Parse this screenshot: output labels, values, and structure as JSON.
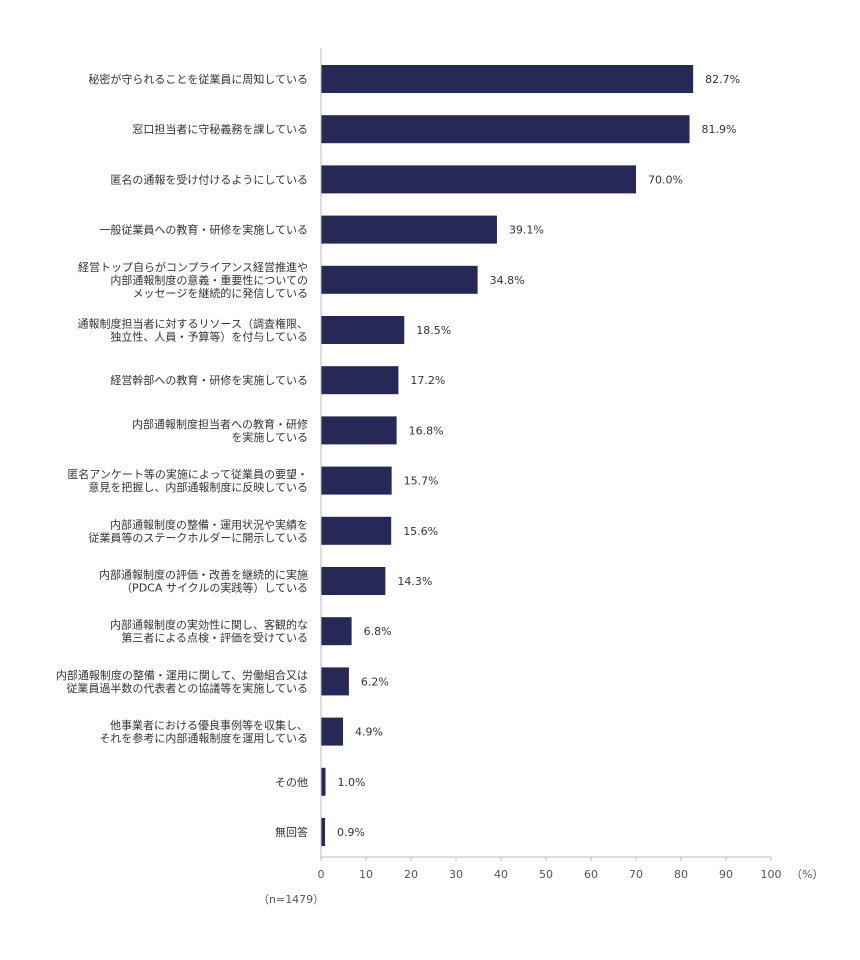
{
  "chart_data": {
    "type": "bar",
    "orientation": "horizontal",
    "categories": [
      [
        "秘密が守られることを従業員に周知している"
      ],
      [
        "窓口担当者に守秘義務を課している"
      ],
      [
        "匿名の通報を受け付けるようにしている"
      ],
      [
        "一般従業員への教育・研修を実施している"
      ],
      [
        "経営トップ自らがコンプライアンス経営推進や",
        "内部通報制度の意義・重要性についての",
        "メッセージを継続的に発信している"
      ],
      [
        "通報制度担当者に対するリソース（調査権限、",
        "独立性、人員・予算等）を付与している"
      ],
      [
        "経営幹部への教育・研修を実施している"
      ],
      [
        "内部通報制度担当者への教育・研修",
        "を実施している"
      ],
      [
        "匿名アンケート等の実施によって従業員の要望・",
        "意見を把握し、内部通報制度に反映している"
      ],
      [
        "内部通報制度の整備・運用状況や実績を",
        "従業員等のステークホルダーに開示している"
      ],
      [
        "内部通報制度の評価・改善を継続的に実施",
        "（PDCA サイクルの実践等）している"
      ],
      [
        "内部通報制度の実効性に関し、客観的な",
        "第三者による点検・評価を受けている"
      ],
      [
        "内部通報制度の整備・運用に関して、労働組合又は",
        "従業員過半数の代表者との協議等を実施している"
      ],
      [
        "他事業者における優良事例等を収集し、",
        "それを参考に内部通報制度を運用している"
      ],
      [
        "その他"
      ],
      [
        "無回答"
      ]
    ],
    "values": [
      82.7,
      81.9,
      70.0,
      39.1,
      34.8,
      18.5,
      17.2,
      16.8,
      15.7,
      15.6,
      14.3,
      6.8,
      6.2,
      4.9,
      1.0,
      0.9
    ],
    "value_labels": [
      "82.7%",
      "81.9%",
      "70.0%",
      "39.1%",
      "34.8%",
      "18.5%",
      "17.2%",
      "16.8%",
      "15.7%",
      "15.6%",
      "14.3%",
      "6.8%",
      "6.2%",
      "4.9%",
      "1.0%",
      "0.9%"
    ],
    "xlim": [
      0,
      100
    ],
    "xticks": [
      "0",
      "10",
      "20",
      "30",
      "40",
      "50",
      "60",
      "70",
      "80",
      "90",
      "100"
    ],
    "x_unit": "（%）",
    "bar_color": "#262955",
    "grid": false
  },
  "footnote": "（n=1479）"
}
